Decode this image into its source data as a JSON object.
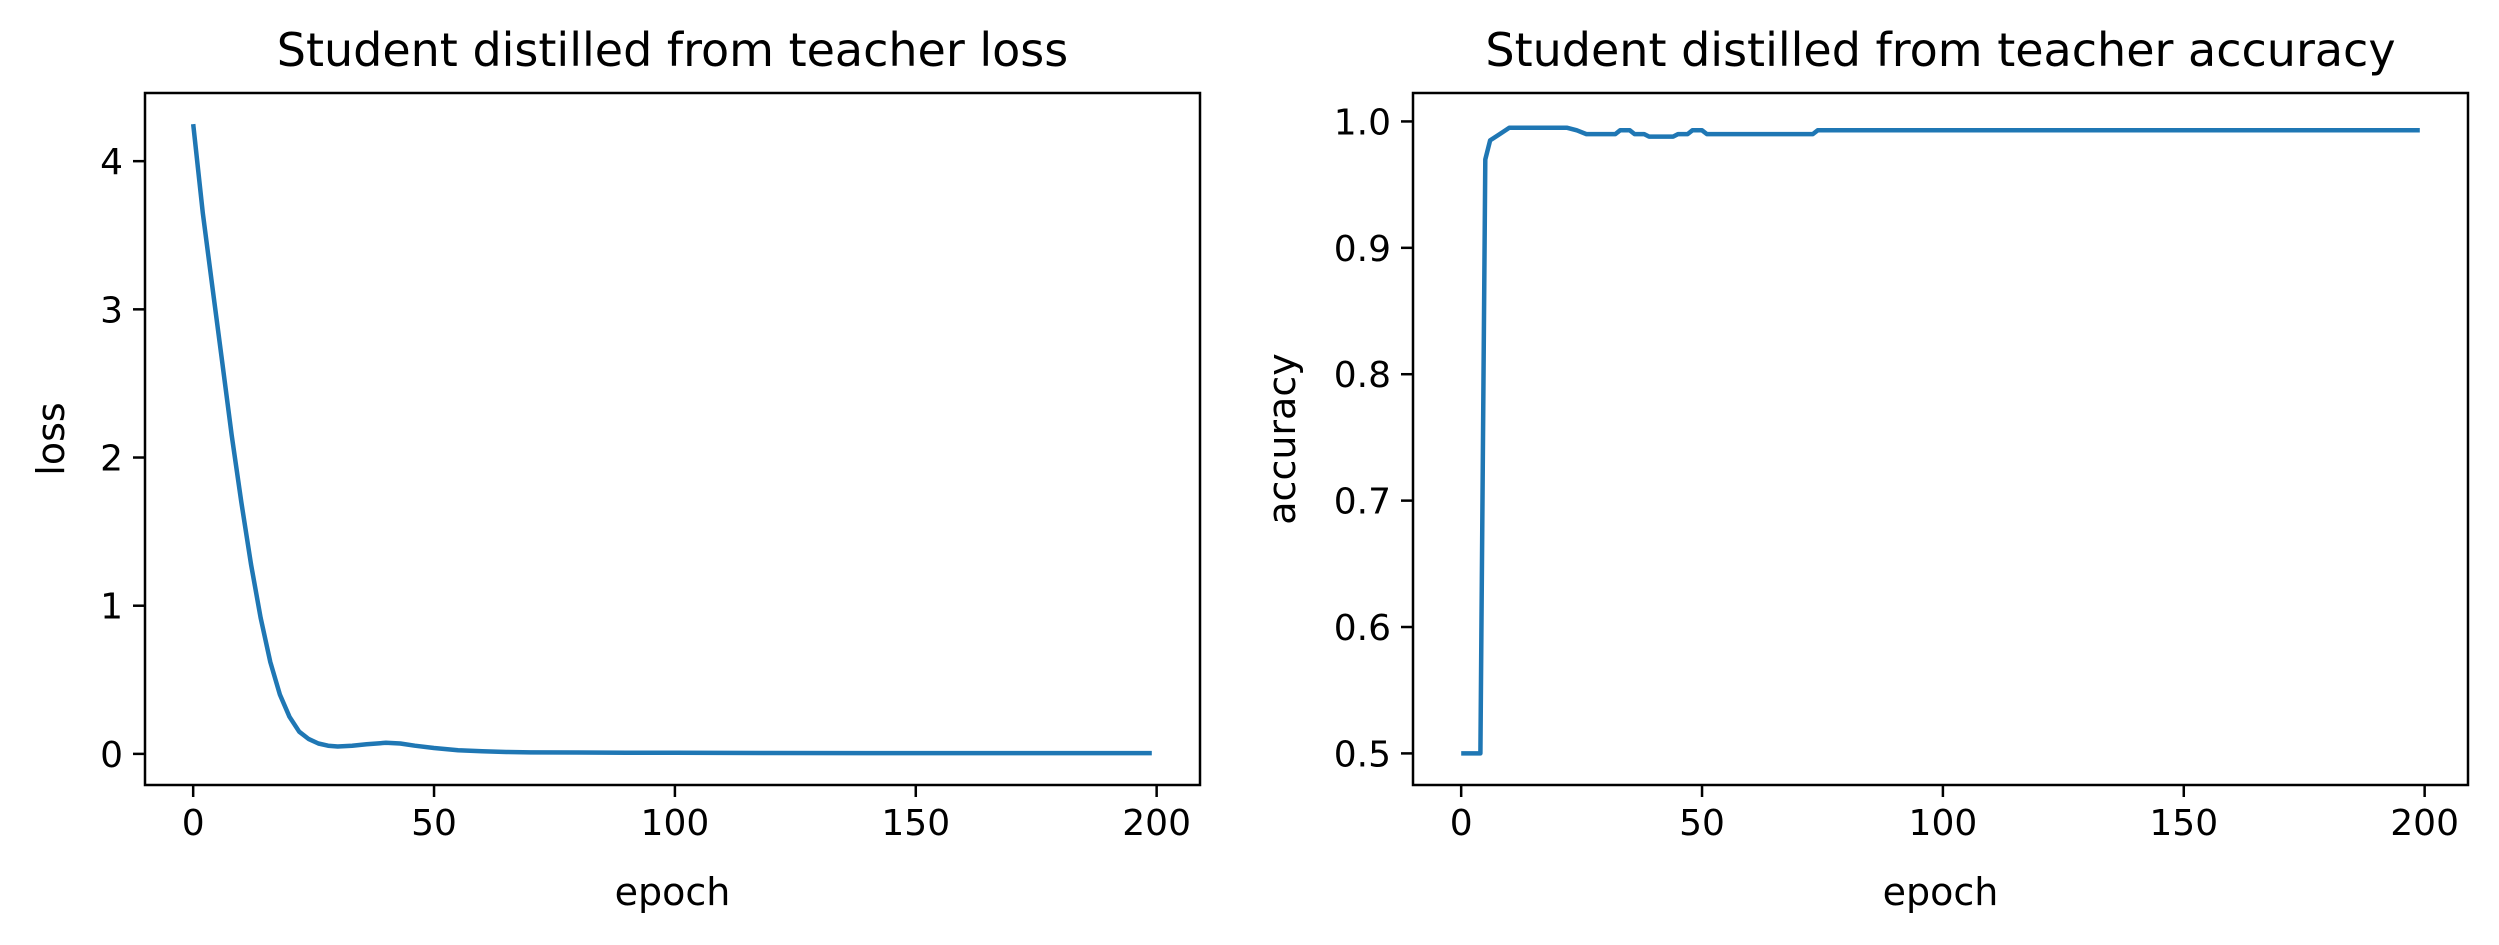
{
  "chart_data": [
    {
      "type": "line",
      "title": "Student distilled from teacher loss",
      "xlabel": "epoch",
      "ylabel": "loss",
      "xlim": [
        -10,
        209
      ],
      "ylim": [
        -0.21,
        4.46
      ],
      "xticks": [
        0,
        50,
        100,
        150,
        200
      ],
      "yticks": [
        0,
        1,
        2,
        3,
        4
      ],
      "grid": false,
      "legend": "none",
      "color": "#1f77b4",
      "series": [
        {
          "x": [
            0,
            1,
            2,
            4,
            6,
            8,
            10,
            12,
            14,
            16,
            18,
            20,
            22,
            24,
            26,
            28,
            30,
            33,
            36,
            40,
            43,
            46,
            50,
            55,
            60,
            65,
            70,
            80,
            90,
            100,
            120,
            140,
            160,
            180,
            199
          ],
          "values": [
            4.25,
            3.95,
            3.65,
            3.15,
            2.65,
            2.15,
            1.7,
            1.28,
            0.92,
            0.62,
            0.4,
            0.25,
            0.15,
            0.1,
            0.07,
            0.055,
            0.05,
            0.055,
            0.065,
            0.075,
            0.07,
            0.055,
            0.04,
            0.025,
            0.018,
            0.013,
            0.01,
            0.009,
            0.008,
            0.007,
            0.006,
            0.005,
            0.005,
            0.005,
            0.005
          ]
        }
      ]
    },
    {
      "type": "line",
      "title": "Student distilled from teacher accuracy",
      "xlabel": "epoch",
      "ylabel": "accuracy",
      "xlim": [
        -10,
        209
      ],
      "ylim": [
        0.475,
        1.0225
      ],
      "xticks": [
        0,
        50,
        100,
        150,
        200
      ],
      "yticks": [
        0.5,
        0.6,
        0.7,
        0.8,
        0.9,
        1.0
      ],
      "grid": false,
      "legend": "none",
      "color": "#1f77b4",
      "series": [
        {
          "x": [
            0,
            4,
            5,
            6,
            8,
            10,
            22,
            24,
            26,
            32,
            33,
            35,
            36,
            38,
            39,
            44,
            45,
            47,
            48,
            50,
            51,
            73,
            74,
            199
          ],
          "values": [
            0.5,
            0.5,
            0.97,
            0.985,
            0.99,
            0.995,
            0.995,
            0.993,
            0.99,
            0.99,
            0.993,
            0.993,
            0.99,
            0.99,
            0.988,
            0.988,
            0.99,
            0.99,
            0.993,
            0.993,
            0.99,
            0.99,
            0.993,
            0.993
          ]
        }
      ]
    }
  ]
}
